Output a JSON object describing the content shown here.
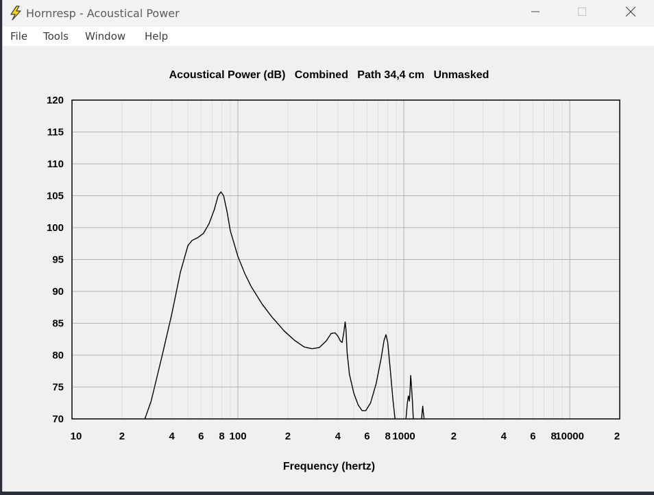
{
  "window": {
    "title": "Hornresp - Acoustical Power",
    "icon": "lightning-bolt-icon",
    "controls": {
      "minimize": "minimize-icon",
      "maximize": "maximize-icon",
      "close": "close-icon"
    }
  },
  "menu": {
    "items": [
      {
        "label": "File"
      },
      {
        "label": "Tools"
      },
      {
        "label": "Window"
      },
      {
        "label": "Help"
      }
    ]
  },
  "chart_data": {
    "type": "line",
    "title": "Acoustical Power (dB)   Combined   Path 34,4 cm   Unmasked",
    "xlabel": "Frequency (hertz)",
    "ylabel": "",
    "x_scale": "log",
    "xlim": [
      10,
      20000
    ],
    "ylim": [
      70,
      120
    ],
    "grid": true,
    "legend": "none",
    "colors": {
      "line": "#000000",
      "grid_major": "#b4b4b4",
      "grid_minor": "#dedede",
      "tick_labels": "#000000"
    },
    "x_ticks": [
      {
        "value": 10,
        "label": "10"
      },
      {
        "value": 20,
        "label": "2"
      },
      {
        "value": 40,
        "label": "4"
      },
      {
        "value": 60,
        "label": "6"
      },
      {
        "value": 80,
        "label": "8"
      },
      {
        "value": 100,
        "label": "100"
      },
      {
        "value": 200,
        "label": "2"
      },
      {
        "value": 400,
        "label": "4"
      },
      {
        "value": 600,
        "label": "6"
      },
      {
        "value": 800,
        "label": "8"
      },
      {
        "value": 1000,
        "label": "1000"
      },
      {
        "value": 2000,
        "label": "2"
      },
      {
        "value": 4000,
        "label": "4"
      },
      {
        "value": 6000,
        "label": "6"
      },
      {
        "value": 8000,
        "label": "8"
      },
      {
        "value": 10000,
        "label": "10000"
      },
      {
        "value": 20000,
        "label": "2"
      }
    ],
    "y_ticks": [
      {
        "value": 120,
        "label": "120"
      },
      {
        "value": 115,
        "label": "115"
      },
      {
        "value": 110,
        "label": "110"
      },
      {
        "value": 105,
        "label": "105"
      },
      {
        "value": 100,
        "label": "100"
      },
      {
        "value": 95,
        "label": "95"
      },
      {
        "value": 90,
        "label": "90"
      },
      {
        "value": 85,
        "label": "85"
      },
      {
        "value": 80,
        "label": "80"
      },
      {
        "value": 75,
        "label": "75"
      },
      {
        "value": 70,
        "label": "70"
      }
    ],
    "series": [
      {
        "segments": [
          [
            [
              27.5,
              70
            ],
            [
              30,
              72.8
            ],
            [
              35,
              80
            ],
            [
              40,
              86.5
            ],
            [
              45,
              93
            ],
            [
              50,
              97.2
            ],
            [
              53,
              98.0
            ],
            [
              57,
              98.4
            ],
            [
              62,
              99.1
            ],
            [
              67,
              100.6
            ],
            [
              72,
              102.8
            ],
            [
              76,
              105.0
            ],
            [
              79,
              105.6
            ],
            [
              82,
              105.0
            ],
            [
              86,
              102.5
            ],
            [
              90,
              99.5
            ],
            [
              100,
              95.5
            ],
            [
              110,
              92.8
            ],
            [
              120,
              90.8
            ],
            [
              140,
              88.0
            ],
            [
              160,
              86.0
            ],
            [
              190,
              83.8
            ],
            [
              220,
              82.3
            ],
            [
              250,
              81.3
            ],
            [
              280,
              81.0
            ],
            [
              310,
              81.2
            ],
            [
              340,
              82.2
            ],
            [
              365,
              83.4
            ],
            [
              385,
              83.5
            ],
            [
              400,
              83.0
            ],
            [
              415,
              82.2
            ],
            [
              425,
              82.0
            ],
            [
              435,
              83.6
            ],
            [
              443,
              85.2
            ],
            [
              448,
              84.0
            ],
            [
              455,
              80.5
            ],
            [
              470,
              77.0
            ],
            [
              500,
              74.0
            ],
            [
              530,
              72.2
            ],
            [
              560,
              71.3
            ],
            [
              590,
              71.3
            ],
            [
              630,
              72.5
            ],
            [
              680,
              75.5
            ],
            [
              730,
              79.5
            ],
            [
              760,
              82.3
            ],
            [
              780,
              83.2
            ],
            [
              800,
              82.0
            ],
            [
              830,
              77.5
            ],
            [
              860,
              73.0
            ],
            [
              885,
              70
            ]
          ],
          [
            [
              1030,
              70
            ],
            [
              1050,
              72.5
            ],
            [
              1065,
              73.6
            ],
            [
              1080,
              72.8
            ],
            [
              1090,
              74.5
            ],
            [
              1100,
              76.8
            ],
            [
              1112,
              75.0
            ],
            [
              1125,
              73.0
            ],
            [
              1140,
              70
            ]
          ],
          [
            [
              1280,
              70
            ],
            [
              1290,
              71.2
            ],
            [
              1300,
              72.0
            ],
            [
              1310,
              71.0
            ],
            [
              1325,
              70
            ]
          ]
        ]
      }
    ]
  }
}
